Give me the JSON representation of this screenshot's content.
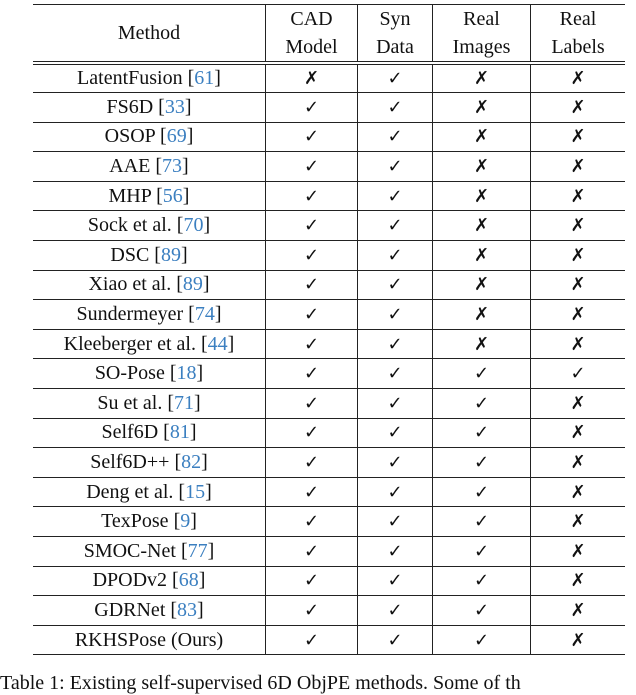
{
  "table": {
    "headers": [
      {
        "line1": "Method",
        "line2": ""
      },
      {
        "line1": "CAD",
        "line2": "Model"
      },
      {
        "line1": "Syn",
        "line2": "Data"
      },
      {
        "line1": "Real",
        "line2": "Images"
      },
      {
        "line1": "Real",
        "line2": "Labels"
      }
    ],
    "icons": {
      "yes": "check-icon ✓",
      "no": "cross-icon ✗"
    },
    "link_color": "#3b7fc0",
    "rows": [
      {
        "method": "LatentFusion",
        "ref": "61",
        "cells": [
          "✗",
          "✓",
          "✗",
          "✗"
        ]
      },
      {
        "method": "FS6D",
        "ref": "33",
        "cells": [
          "✓",
          "✓",
          "✗",
          "✗"
        ]
      },
      {
        "method": "OSOP",
        "ref": "69",
        "cells": [
          "✓",
          "✓",
          "✗",
          "✗"
        ]
      },
      {
        "method": "AAE",
        "ref": "73",
        "cells": [
          "✓",
          "✓",
          "✗",
          "✗"
        ]
      },
      {
        "method": "MHP",
        "ref": "56",
        "cells": [
          "✓",
          "✓",
          "✗",
          "✗"
        ]
      },
      {
        "method": "Sock et al.",
        "ref": "70",
        "cells": [
          "✓",
          "✓",
          "✗",
          "✗"
        ]
      },
      {
        "method": "DSC",
        "ref": "89",
        "cells": [
          "✓",
          "✓",
          "✗",
          "✗"
        ]
      },
      {
        "method": "Xiao et al.",
        "ref": "89",
        "cells": [
          "✓",
          "✓",
          "✗",
          "✗"
        ]
      },
      {
        "method": "Sundermeyer",
        "ref": "74",
        "cells": [
          "✓",
          "✓",
          "✗",
          "✗"
        ]
      },
      {
        "method": "Kleeberger et al.",
        "ref": "44",
        "cells": [
          "✓",
          "✓",
          "✗",
          "✗"
        ]
      },
      {
        "method": "SO-Pose",
        "ref": "18",
        "cells": [
          "✓",
          "✓",
          "✓",
          "✓"
        ]
      },
      {
        "method": "Su et al.",
        "ref": "71",
        "cells": [
          "✓",
          "✓",
          "✓",
          "✗"
        ]
      },
      {
        "method": "Self6D",
        "ref": "81",
        "cells": [
          "✓",
          "✓",
          "✓",
          "✗"
        ]
      },
      {
        "method": "Self6D++",
        "ref": "82",
        "cells": [
          "✓",
          "✓",
          "✓",
          "✗"
        ]
      },
      {
        "method": "Deng et al.",
        "ref": "15",
        "cells": [
          "✓",
          "✓",
          "✓",
          "✗"
        ]
      },
      {
        "method": "TexPose",
        "ref": "9",
        "cells": [
          "✓",
          "✓",
          "✓",
          "✗"
        ]
      },
      {
        "method": "SMOC-Net",
        "ref": "77",
        "cells": [
          "✓",
          "✓",
          "✓",
          "✗"
        ]
      },
      {
        "method": "DPODv2",
        "ref": "68",
        "cells": [
          "✓",
          "✓",
          "✓",
          "✗"
        ]
      },
      {
        "method": "GDRNet",
        "ref": "83",
        "cells": [
          "✓",
          "✓",
          "✓",
          "✗"
        ]
      },
      {
        "method": "RKHSPose (Ours)",
        "ref": "",
        "cells": [
          "✓",
          "✓",
          "✓",
          "✗"
        ]
      }
    ]
  },
  "caption": "Table 1: Existing self-supervised 6D ObjPE methods. Some of th"
}
